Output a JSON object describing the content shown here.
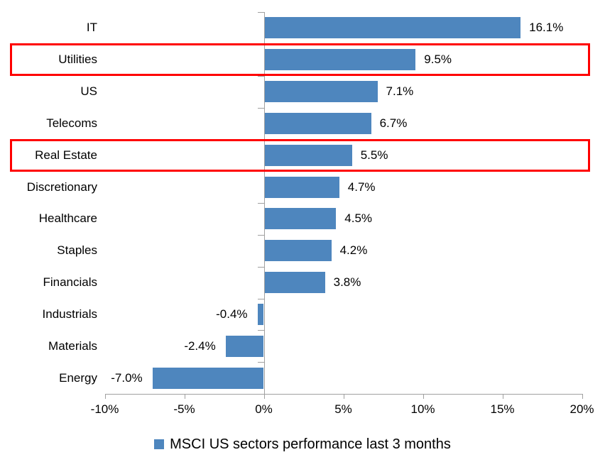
{
  "chart_data": {
    "type": "bar",
    "orientation": "horizontal",
    "title": "",
    "categories": [
      "IT",
      "Utilities",
      "US",
      "Telecoms",
      "Real Estate",
      "Discretionary",
      "Healthcare",
      "Staples",
      "Financials",
      "Industrials",
      "Materials",
      "Energy"
    ],
    "values": [
      16.1,
      9.5,
      7.1,
      6.7,
      5.5,
      4.7,
      4.5,
      4.2,
      3.8,
      -0.4,
      -2.4,
      -7.0
    ],
    "value_labels": [
      "16.1%",
      "9.5%",
      "7.1%",
      "6.7%",
      "5.5%",
      "4.7%",
      "4.5%",
      "4.2%",
      "3.8%",
      "-0.4%",
      "-2.4%",
      "-7.0%"
    ],
    "highlighted_categories": [
      "Utilities",
      "Real Estate"
    ],
    "x_tick_values": [
      -10,
      -5,
      0,
      5,
      10,
      15,
      20
    ],
    "x_tick_labels": [
      "-10%",
      "-5%",
      "0%",
      "5%",
      "10%",
      "15%",
      "20%"
    ],
    "xlim": [
      -10,
      20
    ],
    "grid": "off",
    "legend_position": "bottom-center",
    "legend": "MSCI US sectors performance last 3 months",
    "bar_color": "#4E86BE",
    "highlight_color": "#FF0000",
    "axis_color": "#A0A0A0",
    "text_color": "#000000"
  }
}
